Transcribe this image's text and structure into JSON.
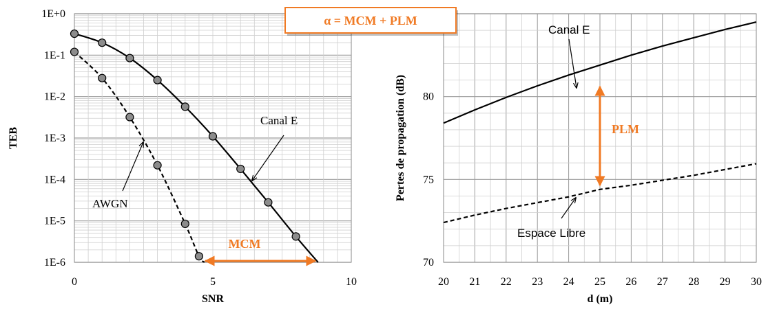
{
  "colors": {
    "accent": "#f07a24",
    "curve": "#000000",
    "marker_fill": "#8c8c8c",
    "grid_major": "#9a9a9a",
    "grid_minor": "#cfcfcf"
  },
  "formula_box": {
    "text": "α = MCM + PLM"
  },
  "chart_data": [
    {
      "type": "line",
      "title": "",
      "xlabel": "SNR",
      "ylabel": "TEB",
      "y_scale": "log",
      "xlim": [
        0,
        10
      ],
      "ylim": [
        1e-06,
        1
      ],
      "x_ticks": [
        "0",
        "5",
        "10"
      ],
      "y_ticks": [
        "1E+0",
        "1E-1",
        "1E-2",
        "1E-3",
        "1E-4",
        "1E-5",
        "1E-6"
      ],
      "grid": true,
      "series": [
        {
          "style": "solid",
          "markers": true,
          "x": [
            0,
            1,
            2,
            3,
            4,
            5,
            6,
            7,
            8,
            8.8
          ],
          "y": [
            0.33,
            0.2,
            0.085,
            0.025,
            0.0057,
            0.0011,
            0.00018,
            2.8e-05,
            4.2e-06,
            1e-06
          ]
        },
        {
          "style": "dashed",
          "markers": true,
          "x": [
            0,
            1,
            2,
            3,
            4,
            4.5,
            4.7
          ],
          "y": [
            0.12,
            0.028,
            0.0032,
            0.00022,
            8.5e-06,
            1.4e-06,
            1e-06
          ]
        }
      ],
      "annotations": [
        {
          "text": "Canal E",
          "series": 0
        },
        {
          "text": "AWGN",
          "series": 1
        },
        {
          "text": "MCM",
          "from_x": 4.7,
          "to_x": 8.8,
          "at_y": 1e-06
        }
      ]
    },
    {
      "type": "line",
      "title": "",
      "xlabel": "d (m)",
      "ylabel": "Pertes de propagation (dB)",
      "xlim": [
        20,
        30
      ],
      "ylim": [
        70,
        85
      ],
      "x_ticks": [
        "20",
        "21",
        "22",
        "23",
        "24",
        "25",
        "26",
        "27",
        "28",
        "29",
        "30"
      ],
      "y_ticks": [
        "70",
        "75",
        "80"
      ],
      "grid": true,
      "series": [
        {
          "style": "solid",
          "x": [
            20,
            21,
            22,
            23,
            24,
            25,
            26,
            27,
            28,
            29,
            30
          ],
          "y": [
            78.4,
            79.2,
            79.95,
            80.65,
            81.3,
            81.9,
            82.5,
            83.05,
            83.55,
            84.05,
            84.5
          ]
        },
        {
          "style": "dashed",
          "x": [
            20,
            21,
            22,
            23,
            24,
            25,
            26,
            27,
            28,
            29,
            30
          ],
          "y": [
            72.4,
            72.85,
            73.25,
            73.6,
            73.95,
            74.4,
            74.65,
            74.95,
            75.25,
            75.6,
            75.95
          ]
        }
      ],
      "annotations": [
        {
          "text": "Canal E",
          "series": 0
        },
        {
          "text": "Espace Libre",
          "series": 1
        },
        {
          "text": "PLM",
          "at_x": 25,
          "from_y": 74.4,
          "to_y": 81.9
        }
      ]
    }
  ]
}
